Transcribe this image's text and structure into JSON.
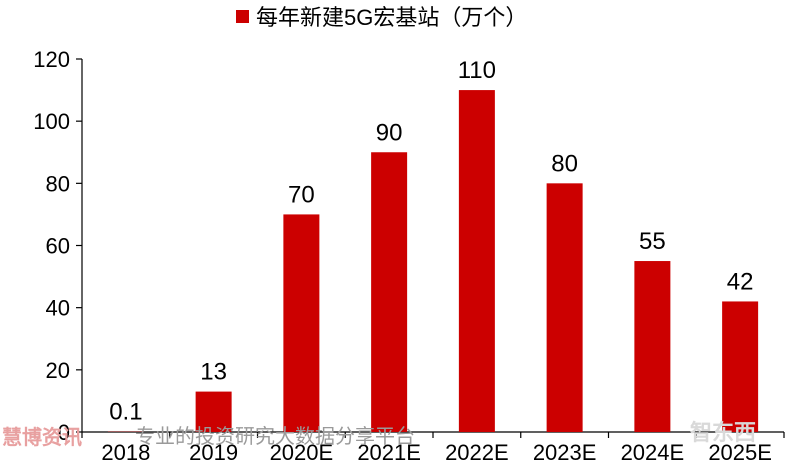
{
  "chart_data": {
    "type": "bar",
    "categories": [
      "2018",
      "2019",
      "2020E",
      "2021E",
      "2022E",
      "2023E",
      "2024E",
      "2025E"
    ],
    "series": [
      {
        "name": "每年新建5G宏基站（万个）",
        "values": [
          0.1,
          13,
          70,
          90,
          110,
          80,
          55,
          42
        ],
        "labels": [
          "0.1",
          "13",
          "70",
          "90",
          "110",
          "80",
          "55",
          "42"
        ],
        "color": "#cc0000"
      }
    ],
    "ylim": [
      0,
      120
    ],
    "yticks": [
      0,
      20,
      40,
      60,
      80,
      100,
      120
    ],
    "legend": "top-center",
    "grid": false
  },
  "watermark": {
    "left": "慧博资讯",
    "slogan": "专业的投资研究大数据分享平台",
    "right": "智东西"
  }
}
